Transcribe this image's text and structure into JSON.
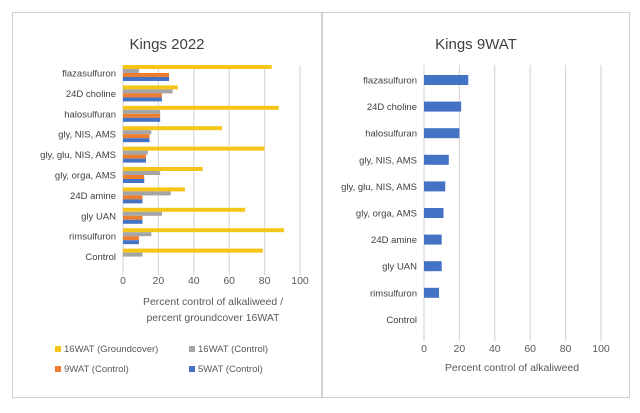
{
  "colors": {
    "yellow": "#f5c518",
    "gray": "#a5a5a5",
    "orange": "#ed7d31",
    "blue": "#4472c4",
    "grid": "#d9d9d9"
  },
  "chart_data": [
    {
      "type": "bar",
      "orientation": "horizontal",
      "title": "Kings 2022",
      "xlabel_lines": [
        "Percent control of alkaliweed /",
        "percent groundcover 16WAT"
      ],
      "xlim": [
        0,
        100
      ],
      "xticks": [
        0,
        20,
        40,
        60,
        80,
        100
      ],
      "grid": true,
      "legend_position": "bottom",
      "categories": [
        "flazasulfuron",
        "24D choline",
        "halosulfuran",
        "gly, NIS, AMS",
        "gly, glu, NIS, AMS",
        "gly, orga, AMS",
        "24D amine",
        "gly UAN",
        "rimsulfuron",
        "Control"
      ],
      "series": [
        {
          "name": "16WAT (Groundcover)",
          "color": "#f5c518",
          "values": [
            84,
            31,
            88,
            56,
            80,
            45,
            35,
            69,
            91,
            79
          ]
        },
        {
          "name": "16WAT (Control)",
          "color": "#a5a5a5",
          "values": [
            9,
            28,
            21,
            16,
            14,
            21,
            27,
            22,
            16,
            11
          ]
        },
        {
          "name": "9WAT (Control)",
          "color": "#ed7d31",
          "values": [
            26,
            22,
            21,
            15,
            13,
            12,
            11,
            11,
            9,
            0
          ]
        },
        {
          "name": "5WAT (Control)",
          "color": "#4472c4",
          "values": [
            26,
            22,
            21,
            15,
            13,
            12,
            11,
            11,
            9,
            0
          ]
        }
      ]
    },
    {
      "type": "bar",
      "orientation": "horizontal",
      "title": "Kings 9WAT",
      "xlabel": "Percent control of alkaliweed",
      "xlim": [
        0,
        100
      ],
      "xticks": [
        0,
        20,
        40,
        60,
        80,
        100
      ],
      "grid": true,
      "categories": [
        "flazasulfuron",
        "24D choline",
        "halosulfuran",
        "gly, NIS, AMS",
        "gly, glu, NIS, AMS",
        "gly, orga, AMS",
        "24D amine",
        "gly UAN",
        "rimsulfuron",
        "Control"
      ],
      "series": [
        {
          "color": "#4472c4",
          "values": [
            25,
            21,
            20,
            14,
            12,
            11,
            10,
            10,
            8.5,
            0
          ]
        }
      ]
    }
  ]
}
